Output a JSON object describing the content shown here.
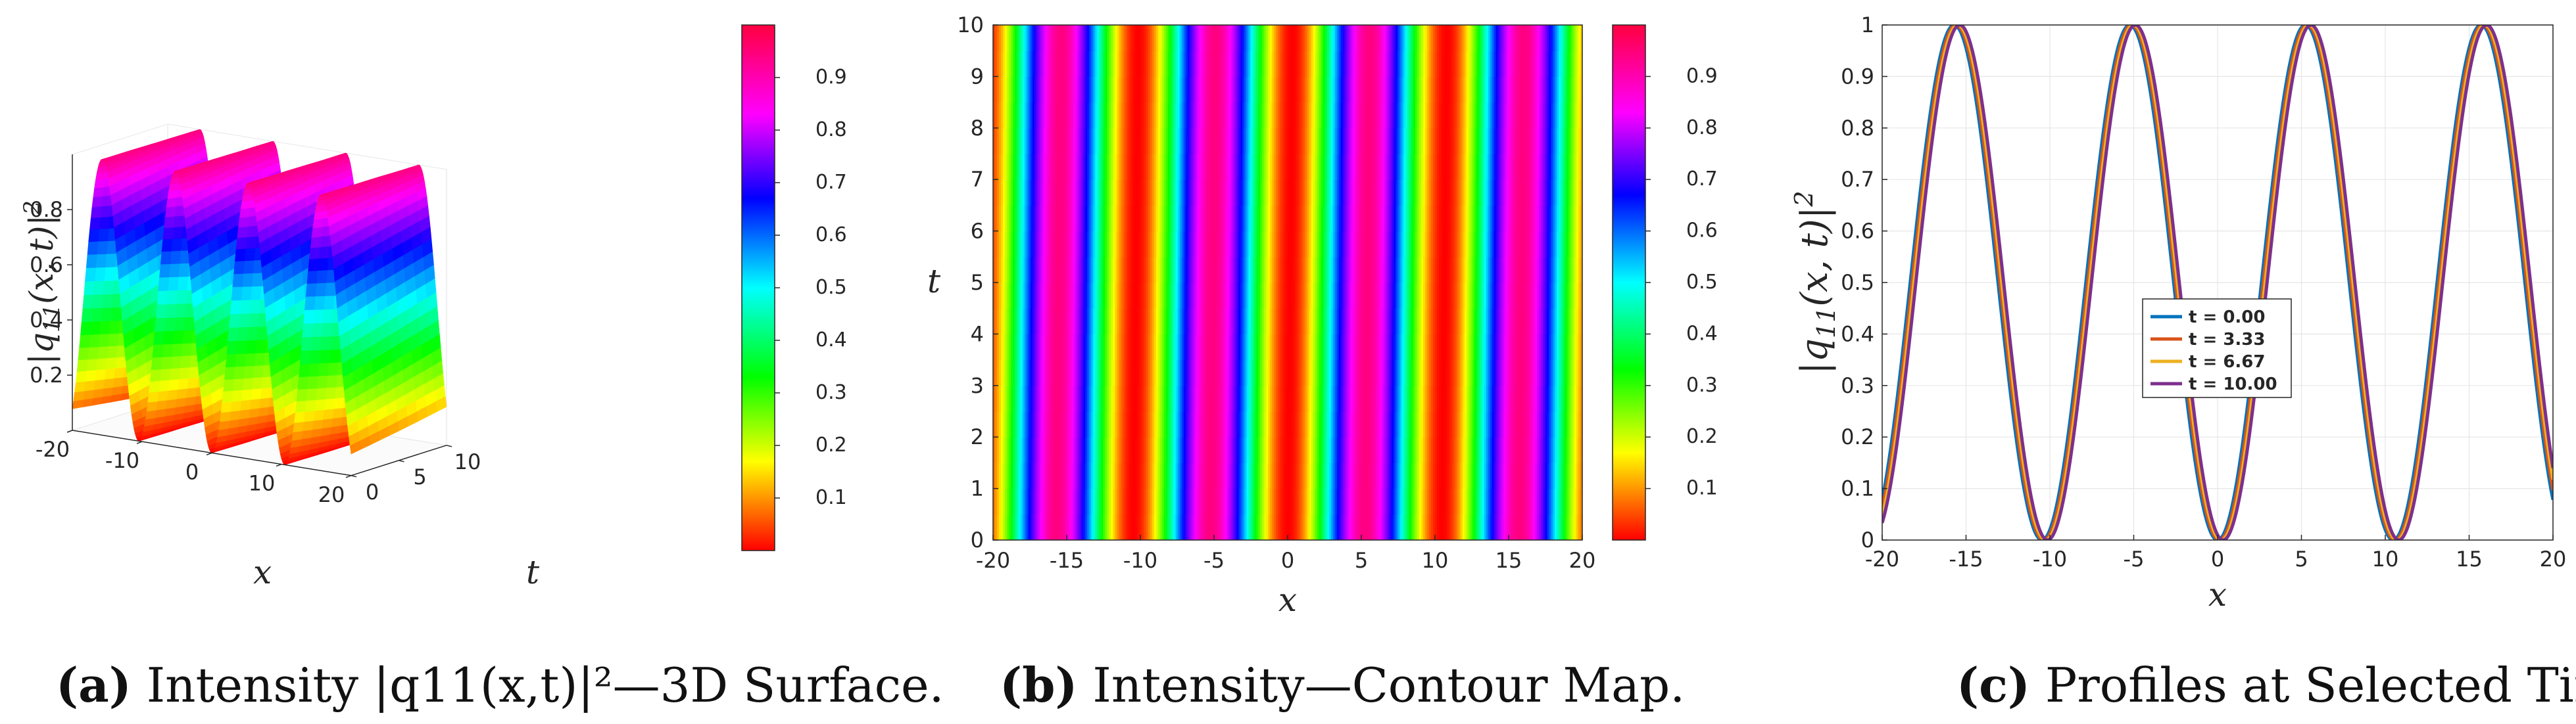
{
  "chart_data": [
    {
      "type": "surface",
      "panel": "a",
      "caption_tag": "(a)",
      "caption_text": "Intensity |q11(x,t)|²—3D Surface.",
      "zlabel": "|q11(x,t)|²",
      "xlabel": "x",
      "ylabel": "t",
      "xlim": [
        -20,
        20
      ],
      "ylim": [
        0,
        10
      ],
      "x_ticks": [
        "-20",
        "-10",
        "0",
        "10",
        "20"
      ],
      "t_ticks": [
        "0",
        "5",
        "10"
      ],
      "z_ticks": [
        "0.2",
        "0.4",
        "0.6",
        "0.8"
      ],
      "colorbar_ticks": [
        "0.1",
        "0.2",
        "0.3",
        "0.4",
        "0.5",
        "0.6",
        "0.7",
        "0.8",
        "0.9"
      ],
      "colormap": "hsv-rainbow",
      "model": {
        "amplitude": 1.0,
        "wavenumber": 0.3,
        "speed": 0.0333
      }
    },
    {
      "type": "heatmap",
      "panel": "b",
      "caption_tag": "(b)",
      "caption_text": "Intensity—Contour Map.",
      "xlabel": "x",
      "ylabel": "t",
      "xlim": [
        -20,
        20
      ],
      "ylim": [
        0,
        10
      ],
      "x_ticks": [
        "-20",
        "-15",
        "-10",
        "-5",
        "0",
        "5",
        "10",
        "15",
        "20"
      ],
      "y_ticks": [
        "0",
        "1",
        "2",
        "3",
        "4",
        "5",
        "6",
        "7",
        "8",
        "9",
        "10"
      ],
      "colorbar_ticks": [
        "0.1",
        "0.2",
        "0.3",
        "0.4",
        "0.5",
        "0.6",
        "0.7",
        "0.8",
        "0.9"
      ],
      "colormap": "hsv-rainbow",
      "model": {
        "amplitude": 1.0,
        "wavenumber": 0.3,
        "speed": 0.0333
      }
    },
    {
      "type": "line",
      "panel": "c",
      "caption_tag": "(c)",
      "caption_text": "Profiles at Selected Times.",
      "xlabel": "x",
      "ylabel": "|q11(x,t)|²",
      "xlim": [
        -20,
        20
      ],
      "ylim": [
        0,
        1
      ],
      "grid": true,
      "legend_position": "center",
      "x_ticks": [
        "-20",
        "-15",
        "-10",
        "-5",
        "0",
        "5",
        "10",
        "15",
        "20"
      ],
      "y_ticks": [
        "0",
        "0.1",
        "0.2",
        "0.3",
        "0.4",
        "0.5",
        "0.6",
        "0.7",
        "0.8",
        "0.9",
        "1"
      ],
      "series": [
        {
          "name": "t = 0.00",
          "t": 0.0,
          "color": "#0072BD"
        },
        {
          "name": "t = 3.33",
          "t": 3.33,
          "color": "#D95319"
        },
        {
          "name": "t = 6.67",
          "t": 6.67,
          "color": "#EDB120"
        },
        {
          "name": "t = 10.00",
          "t": 10.0,
          "color": "#7E2F8E"
        }
      ],
      "model": {
        "amplitude": 1.0,
        "wavenumber": 0.3,
        "speed": 0.0333
      }
    }
  ]
}
